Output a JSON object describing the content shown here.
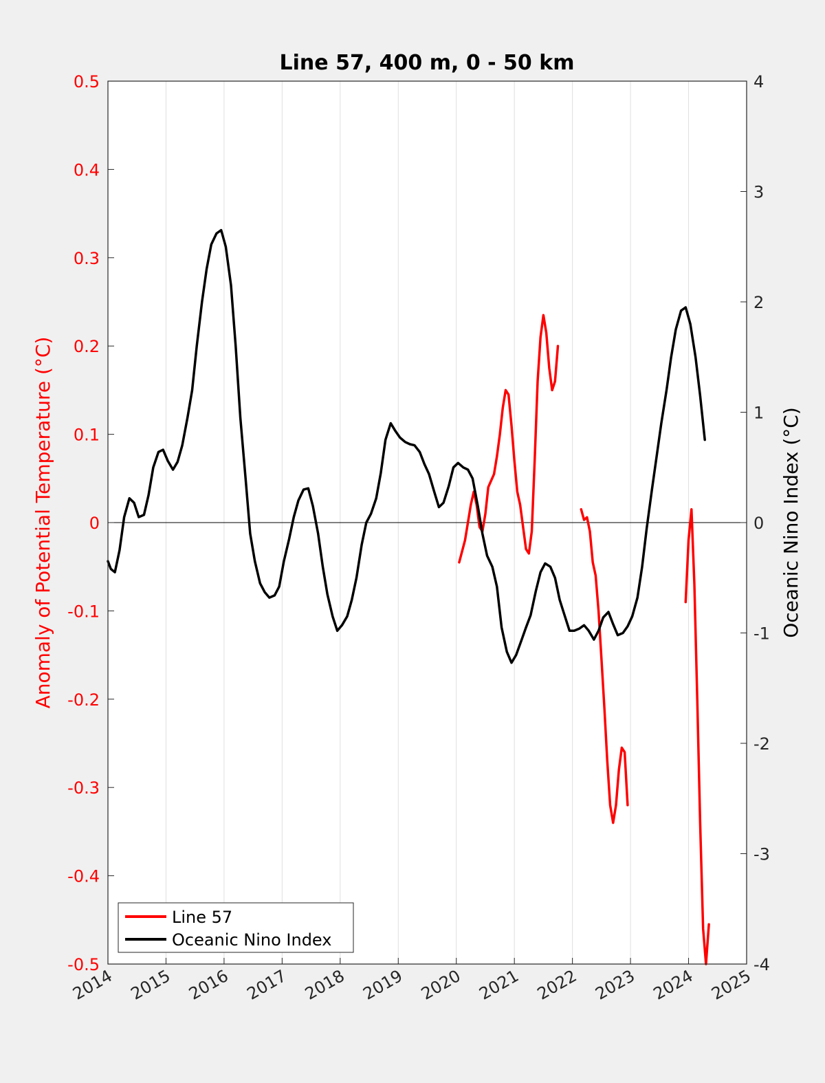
{
  "chart_data": {
    "type": "line",
    "title": "Line 57, 400 m, 0 - 50 km",
    "xlim": [
      2014,
      2025
    ],
    "xticks": [
      "2014",
      "2015",
      "2016",
      "2017",
      "2018",
      "2019",
      "2020",
      "2021",
      "2022",
      "2023",
      "2024",
      "2025"
    ],
    "ylabel_left": "Anomaly of Potential Temperature (°C)",
    "ylim_left": [
      -0.5,
      0.5
    ],
    "yticks_left": [
      "-0.5",
      "-0.4",
      "-0.3",
      "-0.2",
      "-0.1",
      "0",
      "0.1",
      "0.2",
      "0.3",
      "0.4",
      "0.5"
    ],
    "ylabel_right": "Oceanic Nino Index (°C)",
    "ylim_right": [
      -4,
      4
    ],
    "yticks_right": [
      "-4",
      "-3",
      "-2",
      "-1",
      "0",
      "1",
      "2",
      "3",
      "4"
    ],
    "grid": "vertical",
    "zero_line": true,
    "legend_position": "bottom-left",
    "series": [
      {
        "name": "Line 57",
        "axis": "left",
        "color": "#ff0000",
        "segments": [
          [
            [
              2020.05,
              -0.045
            ],
            [
              2020.15,
              -0.02
            ],
            [
              2020.25,
              0.02
            ],
            [
              2020.3,
              0.035
            ],
            [
              2020.35,
              0.02
            ],
            [
              2020.4,
              -0.005
            ],
            [
              2020.45,
              -0.01
            ],
            [
              2020.5,
              0.01
            ],
            [
              2020.55,
              0.04
            ],
            [
              2020.65,
              0.055
            ],
            [
              2020.7,
              0.075
            ],
            [
              2020.75,
              0.1
            ],
            [
              2020.8,
              0.13
            ],
            [
              2020.85,
              0.15
            ],
            [
              2020.9,
              0.145
            ],
            [
              2020.95,
              0.11
            ],
            [
              2021.0,
              0.07
            ],
            [
              2021.05,
              0.035
            ],
            [
              2021.1,
              0.02
            ],
            [
              2021.2,
              -0.03
            ],
            [
              2021.25,
              -0.035
            ],
            [
              2021.3,
              -0.01
            ],
            [
              2021.35,
              0.07
            ],
            [
              2021.4,
              0.16
            ],
            [
              2021.45,
              0.21
            ],
            [
              2021.5,
              0.235
            ],
            [
              2021.55,
              0.215
            ],
            [
              2021.6,
              0.175
            ],
            [
              2021.65,
              0.15
            ],
            [
              2021.7,
              0.16
            ],
            [
              2021.75,
              0.2
            ]
          ],
          [
            [
              2022.15,
              0.015
            ],
            [
              2022.2,
              0.003
            ],
            [
              2022.25,
              0.006
            ],
            [
              2022.3,
              -0.01
            ],
            [
              2022.35,
              -0.045
            ],
            [
              2022.4,
              -0.06
            ],
            [
              2022.45,
              -0.1
            ],
            [
              2022.5,
              -0.155
            ],
            [
              2022.55,
              -0.21
            ],
            [
              2022.6,
              -0.27
            ],
            [
              2022.65,
              -0.32
            ],
            [
              2022.7,
              -0.34
            ],
            [
              2022.75,
              -0.32
            ],
            [
              2022.8,
              -0.28
            ],
            [
              2022.85,
              -0.255
            ],
            [
              2022.9,
              -0.26
            ],
            [
              2022.95,
              -0.32
            ]
          ],
          [
            [
              2023.95,
              -0.09
            ],
            [
              2024.0,
              -0.02
            ],
            [
              2024.05,
              0.015
            ],
            [
              2024.1,
              -0.07
            ],
            [
              2024.15,
              -0.2
            ],
            [
              2024.2,
              -0.34
            ],
            [
              2024.25,
              -0.46
            ],
            [
              2024.3,
              -0.5
            ],
            [
              2024.35,
              -0.455
            ]
          ]
        ]
      },
      {
        "name": "Oceanic Nino Index",
        "axis": "right",
        "color": "#000000",
        "segments": [
          [
            [
              2014.0,
              -0.35
            ],
            [
              2014.05,
              -0.42
            ],
            [
              2014.12,
              -0.45
            ],
            [
              2014.2,
              -0.25
            ],
            [
              2014.28,
              0.05
            ],
            [
              2014.37,
              0.22
            ],
            [
              2014.45,
              0.18
            ],
            [
              2014.53,
              0.05
            ],
            [
              2014.62,
              0.07
            ],
            [
              2014.7,
              0.25
            ],
            [
              2014.78,
              0.5
            ],
            [
              2014.87,
              0.64
            ],
            [
              2014.95,
              0.66
            ],
            [
              2015.03,
              0.56
            ],
            [
              2015.12,
              0.48
            ],
            [
              2015.2,
              0.55
            ],
            [
              2015.28,
              0.7
            ],
            [
              2015.37,
              0.95
            ],
            [
              2015.45,
              1.2
            ],
            [
              2015.53,
              1.6
            ],
            [
              2015.62,
              2.0
            ],
            [
              2015.7,
              2.3
            ],
            [
              2015.78,
              2.52
            ],
            [
              2015.87,
              2.62
            ],
            [
              2015.95,
              2.65
            ],
            [
              2016.03,
              2.5
            ],
            [
              2016.12,
              2.15
            ],
            [
              2016.2,
              1.6
            ],
            [
              2016.28,
              0.95
            ],
            [
              2016.37,
              0.4
            ],
            [
              2016.45,
              -0.1
            ],
            [
              2016.53,
              -0.35
            ],
            [
              2016.62,
              -0.55
            ],
            [
              2016.7,
              -0.63
            ],
            [
              2016.78,
              -0.68
            ],
            [
              2016.87,
              -0.66
            ],
            [
              2016.95,
              -0.58
            ],
            [
              2017.03,
              -0.35
            ],
            [
              2017.12,
              -0.15
            ],
            [
              2017.2,
              0.05
            ],
            [
              2017.28,
              0.2
            ],
            [
              2017.37,
              0.3
            ],
            [
              2017.45,
              0.31
            ],
            [
              2017.53,
              0.15
            ],
            [
              2017.62,
              -0.1
            ],
            [
              2017.7,
              -0.4
            ],
            [
              2017.78,
              -0.65
            ],
            [
              2017.87,
              -0.85
            ],
            [
              2017.95,
              -0.98
            ],
            [
              2018.03,
              -0.93
            ],
            [
              2018.12,
              -0.85
            ],
            [
              2018.2,
              -0.7
            ],
            [
              2018.28,
              -0.5
            ],
            [
              2018.37,
              -0.2
            ],
            [
              2018.45,
              0.0
            ],
            [
              2018.53,
              0.08
            ],
            [
              2018.62,
              0.22
            ],
            [
              2018.7,
              0.45
            ],
            [
              2018.78,
              0.75
            ],
            [
              2018.87,
              0.9
            ],
            [
              2018.95,
              0.83
            ],
            [
              2019.03,
              0.77
            ],
            [
              2019.12,
              0.73
            ],
            [
              2019.2,
              0.71
            ],
            [
              2019.28,
              0.7
            ],
            [
              2019.37,
              0.64
            ],
            [
              2019.45,
              0.53
            ],
            [
              2019.53,
              0.44
            ],
            [
              2019.62,
              0.28
            ],
            [
              2019.7,
              0.14
            ],
            [
              2019.78,
              0.18
            ],
            [
              2019.87,
              0.33
            ],
            [
              2019.95,
              0.5
            ],
            [
              2020.03,
              0.54
            ],
            [
              2020.12,
              0.5
            ],
            [
              2020.2,
              0.48
            ],
            [
              2020.28,
              0.4
            ],
            [
              2020.37,
              0.15
            ],
            [
              2020.45,
              -0.1
            ],
            [
              2020.53,
              -0.3
            ],
            [
              2020.62,
              -0.4
            ],
            [
              2020.7,
              -0.58
            ],
            [
              2020.78,
              -0.95
            ],
            [
              2020.87,
              -1.17
            ],
            [
              2020.95,
              -1.27
            ],
            [
              2021.03,
              -1.2
            ],
            [
              2021.12,
              -1.07
            ],
            [
              2021.2,
              -0.95
            ],
            [
              2021.28,
              -0.84
            ],
            [
              2021.37,
              -0.62
            ],
            [
              2021.45,
              -0.45
            ],
            [
              2021.53,
              -0.37
            ],
            [
              2021.62,
              -0.4
            ],
            [
              2021.7,
              -0.5
            ],
            [
              2021.78,
              -0.7
            ],
            [
              2021.87,
              -0.85
            ],
            [
              2021.95,
              -0.98
            ],
            [
              2022.03,
              -0.98
            ],
            [
              2022.12,
              -0.96
            ],
            [
              2022.2,
              -0.93
            ],
            [
              2022.28,
              -0.98
            ],
            [
              2022.37,
              -1.06
            ],
            [
              2022.45,
              -0.98
            ],
            [
              2022.53,
              -0.86
            ],
            [
              2022.62,
              -0.81
            ],
            [
              2022.7,
              -0.92
            ],
            [
              2022.78,
              -1.02
            ],
            [
              2022.87,
              -1.0
            ],
            [
              2022.95,
              -0.94
            ],
            [
              2023.03,
              -0.85
            ],
            [
              2023.12,
              -0.68
            ],
            [
              2023.2,
              -0.4
            ],
            [
              2023.28,
              -0.05
            ],
            [
              2023.37,
              0.3
            ],
            [
              2023.45,
              0.6
            ],
            [
              2023.53,
              0.9
            ],
            [
              2023.62,
              1.2
            ],
            [
              2023.7,
              1.5
            ],
            [
              2023.78,
              1.75
            ],
            [
              2023.87,
              1.92
            ],
            [
              2023.95,
              1.95
            ],
            [
              2024.03,
              1.8
            ],
            [
              2024.12,
              1.5
            ],
            [
              2024.2,
              1.15
            ],
            [
              2024.28,
              0.75
            ]
          ]
        ]
      }
    ]
  }
}
